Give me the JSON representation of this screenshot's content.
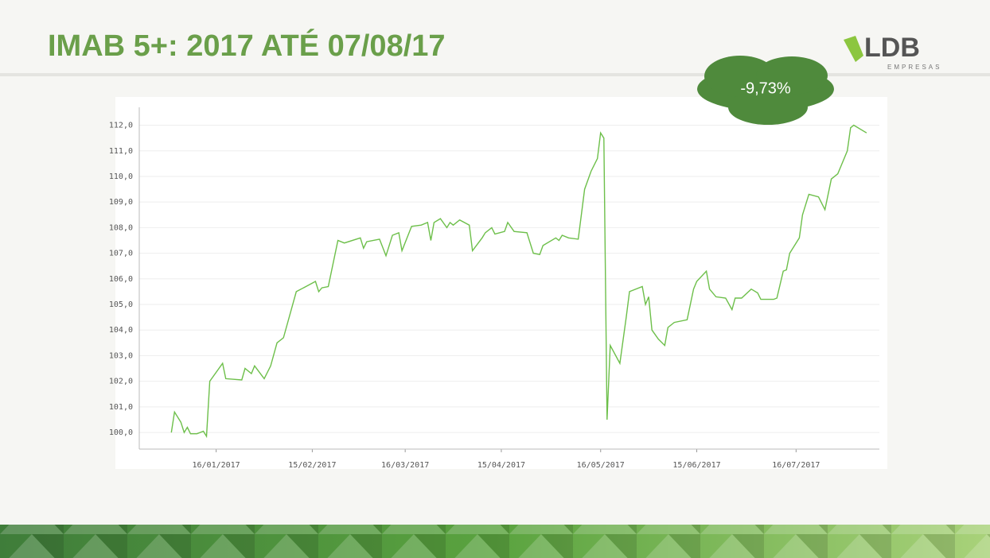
{
  "logo": {
    "name": "LDB",
    "subtitle": "EMPRESAS"
  },
  "chart_data": {
    "type": "line",
    "title": "IMAB 5+: 2017 ATÉ 07/08/17",
    "annotation": "-9,73%",
    "color": "#6dbf4a",
    "grid": true,
    "x": [
      "02/01/2017",
      "03/01/2017",
      "05/01/2017",
      "06/01/2017",
      "07/01/2017",
      "08/01/2017",
      "10/01/2017",
      "12/01/2017",
      "13/01/2017",
      "14/01/2017",
      "18/01/2017",
      "19/01/2017",
      "24/01/2017",
      "25/01/2017",
      "27/01/2017",
      "28/01/2017",
      "31/01/2017",
      "02/02/2017",
      "04/02/2017",
      "06/02/2017",
      "10/02/2017",
      "13/02/2017",
      "16/02/2017",
      "17/02/2017",
      "18/02/2017",
      "20/02/2017",
      "23/02/2017",
      "25/02/2017",
      "02/03/2017",
      "03/03/2017",
      "04/03/2017",
      "08/03/2017",
      "10/03/2017",
      "12/03/2017",
      "14/03/2017",
      "15/03/2017",
      "18/03/2017",
      "21/03/2017",
      "23/03/2017",
      "24/03/2017",
      "25/03/2017",
      "27/03/2017",
      "29/03/2017",
      "30/03/2017",
      "31/03/2017",
      "02/04/2017",
      "05/04/2017",
      "06/04/2017",
      "09/04/2017",
      "10/04/2017",
      "12/04/2017",
      "13/04/2017",
      "16/04/2017",
      "17/04/2017",
      "19/04/2017",
      "23/04/2017",
      "25/04/2017",
      "27/04/2017",
      "28/04/2017",
      "02/05/2017",
      "03/05/2017",
      "04/05/2017",
      "06/05/2017",
      "09/05/2017",
      "11/05/2017",
      "13/05/2017",
      "15/05/2017",
      "16/05/2017",
      "17/05/2017",
      "18/05/2017",
      "19/05/2017",
      "22/05/2017",
      "24/05/2017",
      "25/05/2017",
      "29/05/2017",
      "30/05/2017",
      "31/05/2017",
      "01/06/2017",
      "03/06/2017",
      "05/06/2017",
      "06/06/2017",
      "08/06/2017",
      "12/06/2017",
      "14/06/2017",
      "15/06/2017",
      "18/06/2017",
      "19/06/2017",
      "21/06/2017",
      "24/06/2017",
      "26/06/2017",
      "27/06/2017",
      "29/06/2017",
      "02/07/2017",
      "04/07/2017",
      "05/07/2017",
      "09/07/2017",
      "10/07/2017",
      "12/07/2017",
      "13/07/2017",
      "14/07/2017",
      "17/07/2017",
      "18/07/2017",
      "20/07/2017",
      "23/07/2017",
      "25/07/2017",
      "27/07/2017",
      "29/07/2017",
      "30/07/2017",
      "01/08/2017",
      "02/08/2017",
      "03/08/2017",
      "07/08/2017"
    ],
    "values": [
      100.0,
      100.8,
      100.4,
      100.0,
      100.2,
      99.95,
      99.95,
      100.05,
      99.85,
      102.0,
      102.7,
      102.1,
      102.05,
      102.5,
      102.3,
      102.6,
      102.1,
      102.6,
      103.5,
      103.7,
      105.5,
      105.7,
      105.9,
      105.5,
      105.65,
      105.7,
      107.5,
      107.4,
      107.6,
      107.2,
      107.45,
      107.55,
      106.9,
      107.7,
      107.8,
      107.1,
      108.05,
      108.1,
      108.2,
      107.5,
      108.2,
      108.35,
      108.0,
      108.2,
      108.1,
      108.3,
      108.1,
      107.1,
      107.6,
      107.8,
      108.0,
      107.75,
      107.85,
      108.2,
      107.85,
      107.8,
      107.0,
      106.95,
      107.3,
      107.6,
      107.5,
      107.7,
      107.6,
      107.55,
      109.5,
      110.2,
      110.7,
      111.7,
      111.5,
      100.5,
      103.4,
      102.7,
      104.5,
      105.5,
      105.7,
      105.0,
      105.3,
      104.0,
      103.65,
      103.4,
      104.1,
      104.3,
      104.4,
      105.6,
      105.9,
      106.3,
      105.6,
      105.3,
      105.25,
      104.8,
      105.25,
      105.25,
      105.6,
      105.45,
      105.2,
      105.2,
      105.25,
      106.3,
      106.35,
      107.0,
      107.6,
      108.5,
      109.3,
      109.2,
      108.7,
      109.9,
      110.1,
      110.4,
      111.0,
      111.9,
      112.0,
      111.7
    ],
    "xlim": [
      "23/12/2016",
      "11/08/2017"
    ],
    "xticks": [
      "16/01/2017",
      "15/02/2017",
      "16/03/2017",
      "15/04/2017",
      "16/05/2017",
      "15/06/2017",
      "16/07/2017"
    ],
    "ylim": [
      99.35,
      112.7
    ],
    "yticks": [
      {
        "value": 100,
        "label": "100,0"
      },
      {
        "value": 101,
        "label": "101,0"
      },
      {
        "value": 102,
        "label": "102,0"
      },
      {
        "value": 103,
        "label": "103,0"
      },
      {
        "value": 104,
        "label": "104,0"
      },
      {
        "value": 105,
        "label": "105,0"
      },
      {
        "value": 106,
        "label": "106,0"
      },
      {
        "value": 107,
        "label": "107,0"
      },
      {
        "value": 108,
        "label": "108,0"
      },
      {
        "value": 109,
        "label": "109,0"
      },
      {
        "value": 110,
        "label": "110,0"
      },
      {
        "value": 111,
        "label": "111,0"
      },
      {
        "value": 112,
        "label": "112,0"
      }
    ]
  }
}
